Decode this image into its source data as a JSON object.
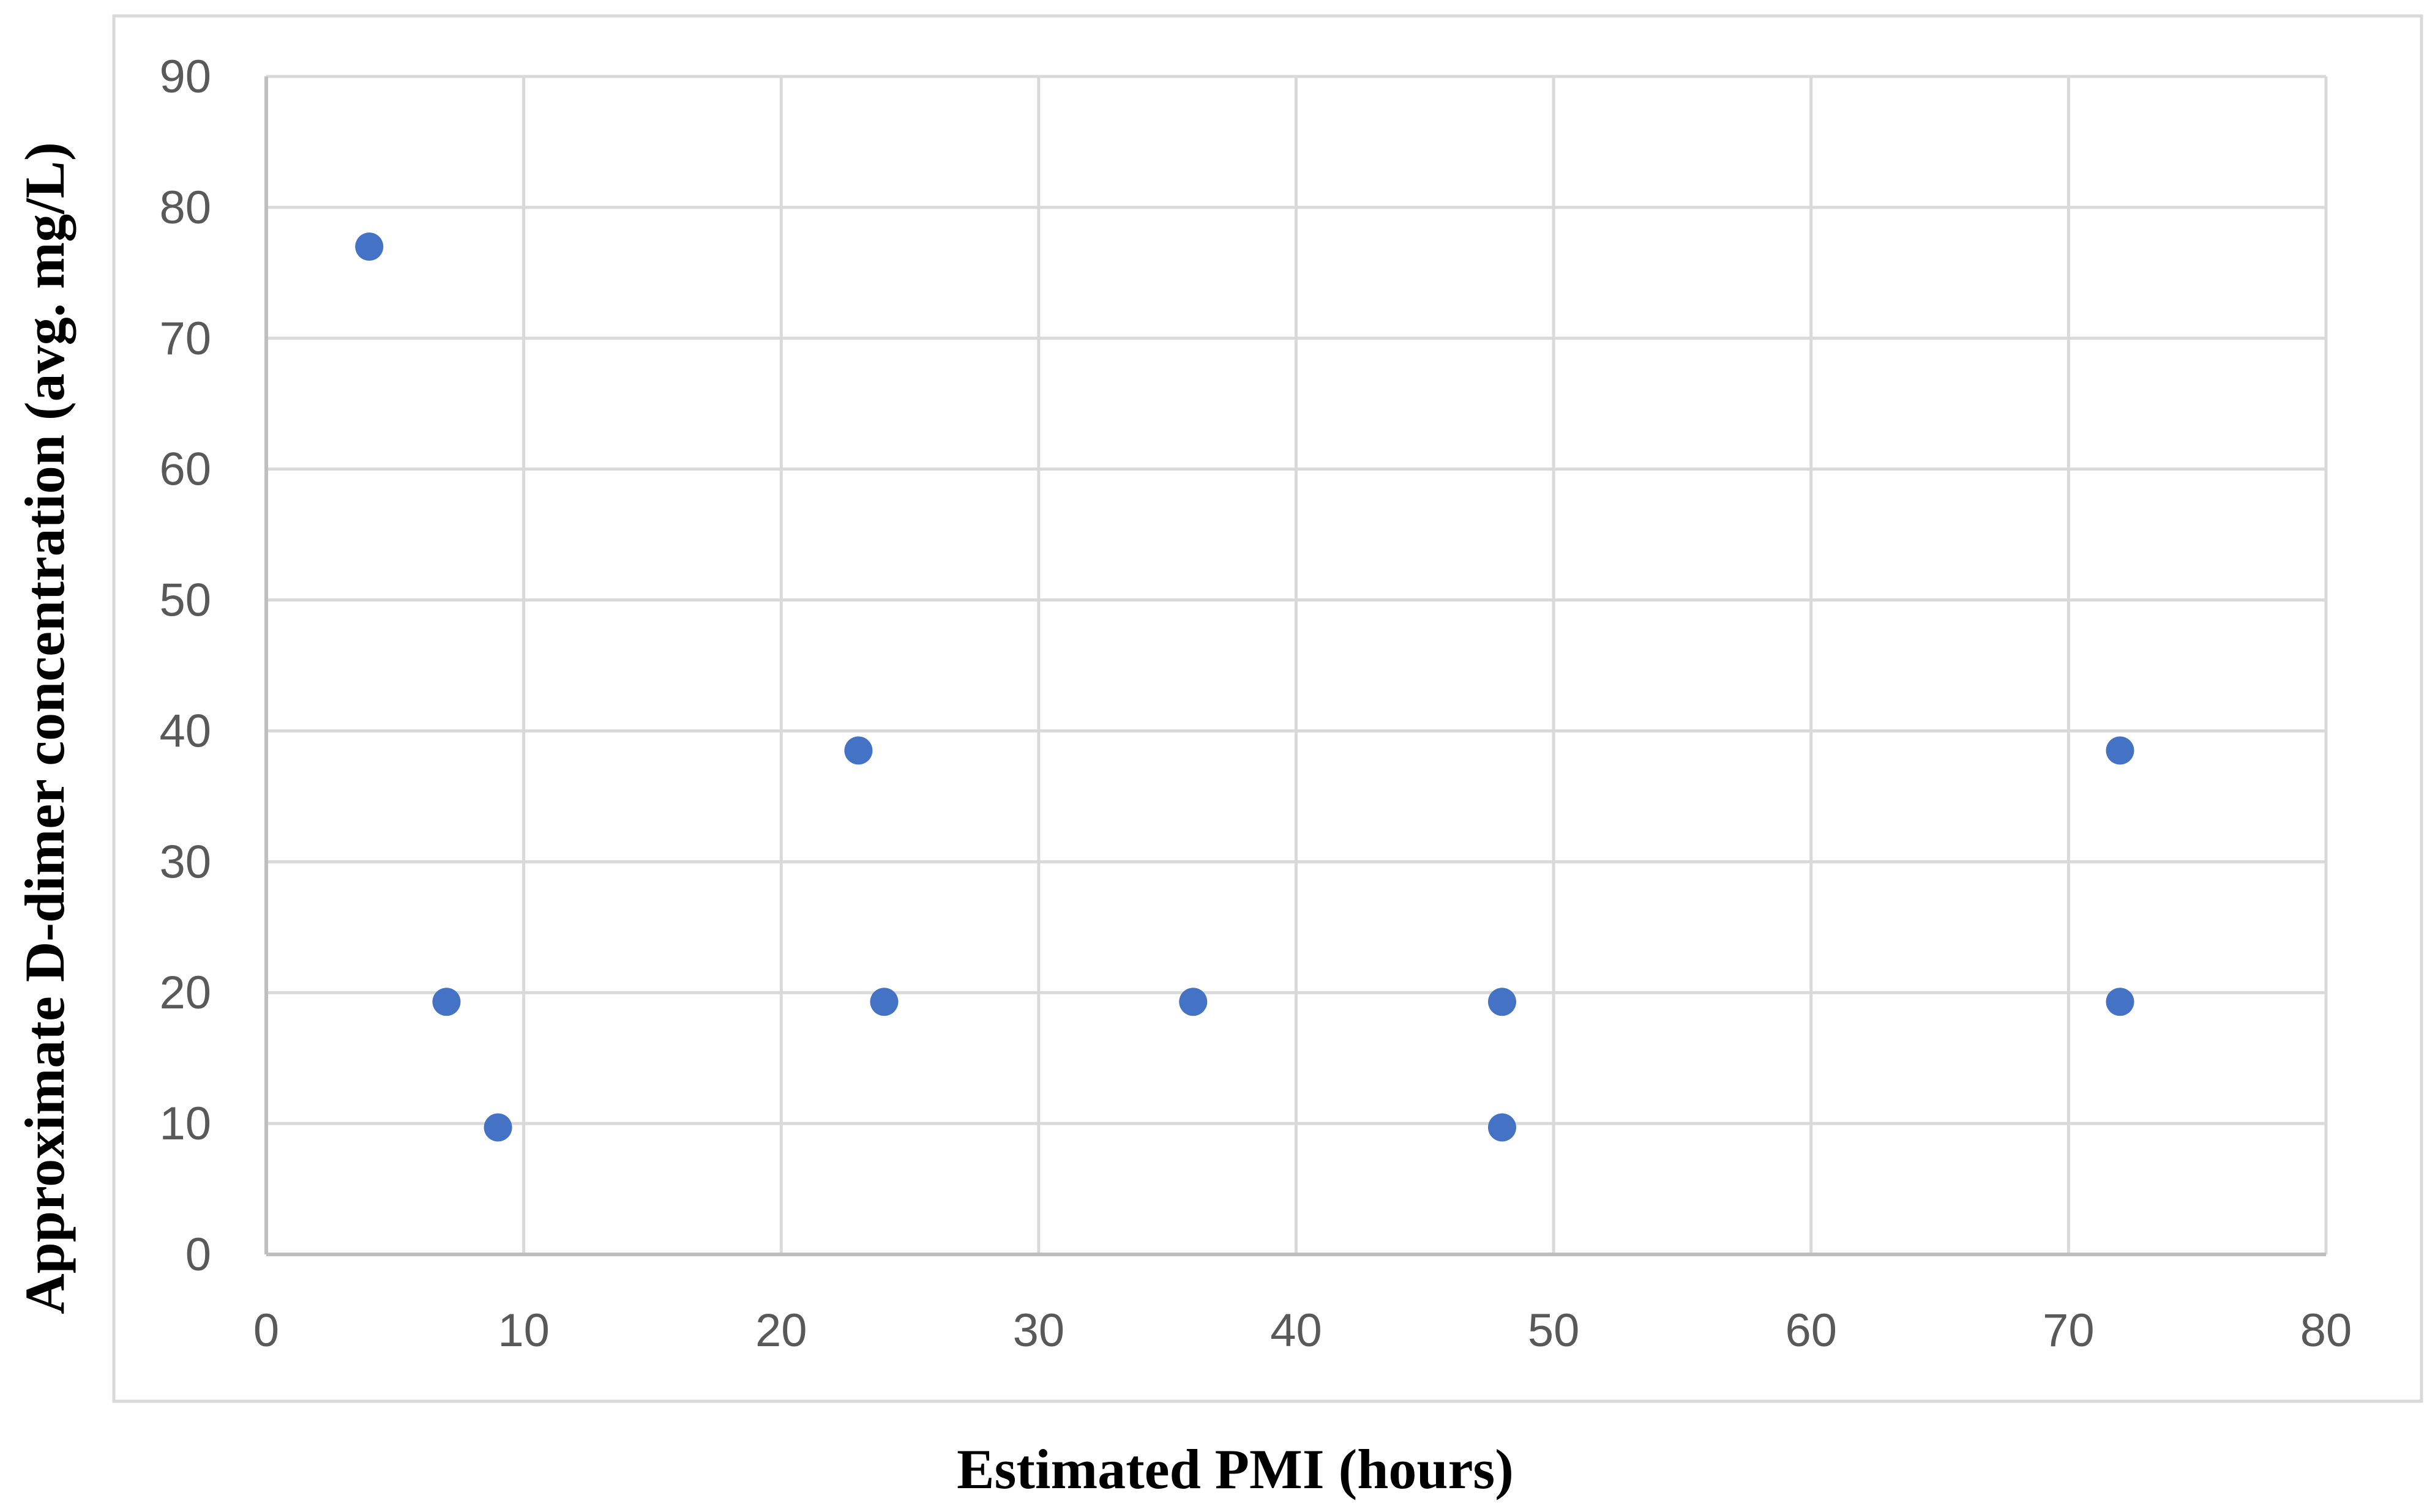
{
  "chart_data": {
    "type": "scatter",
    "title": "",
    "xlabel": "Estimated PMI (hours)",
    "ylabel": "Approximate D-dimer concentration (avg. mg/L)",
    "xlim": [
      0,
      80
    ],
    "ylim": [
      0,
      90
    ],
    "x_ticks": [
      0,
      10,
      20,
      30,
      40,
      50,
      60,
      70,
      80
    ],
    "y_ticks": [
      0,
      10,
      20,
      30,
      40,
      50,
      60,
      70,
      80,
      90
    ],
    "grid": true,
    "legend": "none",
    "series": [
      {
        "color": "#4472C4",
        "points": [
          {
            "x": 4,
            "y": 77
          },
          {
            "x": 7,
            "y": 19.3
          },
          {
            "x": 9,
            "y": 9.7
          },
          {
            "x": 23,
            "y": 38.5
          },
          {
            "x": 24,
            "y": 19.3
          },
          {
            "x": 36,
            "y": 19.3
          },
          {
            "x": 48,
            "y": 19.3
          },
          {
            "x": 48,
            "y": 9.7
          },
          {
            "x": 72,
            "y": 38.5
          },
          {
            "x": 72,
            "y": 19.3
          }
        ]
      }
    ]
  },
  "colors": {
    "point": "#4472C4",
    "grid": "#D9D9D9",
    "axis": "#BFBFBF",
    "tick_text": "#595959",
    "frame": "#D9D9D9"
  }
}
